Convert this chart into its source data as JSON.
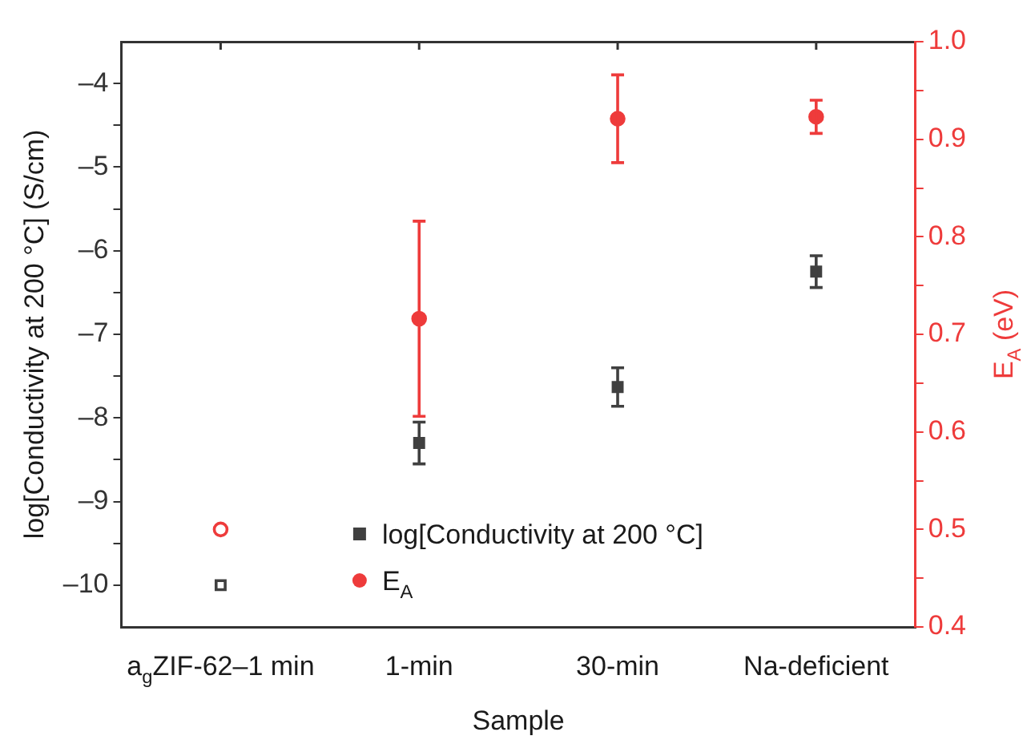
{
  "chart_data": {
    "type": "scatter",
    "xlabel": "Sample",
    "ylabel": "log[Conductivity at 200 °C] (S/cm)",
    "y2label": "E$_{A}$ (eV)",
    "categories": [
      "a$_{g}$ZIF-62–1 min",
      "1-min",
      "30-min",
      "Na-deficient"
    ],
    "series": [
      {
        "name": "log[Conductivity at 200 °C]",
        "color": "#404040",
        "marker": "square",
        "values": [
          -10.0,
          -8.3,
          -7.63,
          -6.25
        ],
        "errors": [
          null,
          0.25,
          0.23,
          0.19
        ]
      },
      {
        "name": "E$_{A}$",
        "color": "#ee3b3b",
        "marker": "circle",
        "axis": "y2",
        "values": [
          0.5,
          0.716,
          0.921,
          0.923
        ],
        "errors": [
          null,
          0.1,
          0.045,
          0.017
        ]
      }
    ],
    "ylim": [
      -10.5,
      -3.5
    ],
    "yticks": [
      {
        "value": -10,
        "label": "–10"
      },
      {
        "value": -9.5,
        "label": null
      },
      {
        "value": -9,
        "label": "–9"
      },
      {
        "value": -8.5,
        "label": null
      },
      {
        "value": -8,
        "label": "–8"
      },
      {
        "value": -7.5,
        "label": null
      },
      {
        "value": -7,
        "label": "–7"
      },
      {
        "value": -6.5,
        "label": null
      },
      {
        "value": -6,
        "label": "–6"
      },
      {
        "value": -5.5,
        "label": null
      },
      {
        "value": -5,
        "label": "–5"
      },
      {
        "value": -4.5,
        "label": null
      },
      {
        "value": -4,
        "label": "–4"
      }
    ],
    "y2lim": [
      0.4,
      1.0
    ],
    "y2ticks": [
      {
        "value": 0.4,
        "label": "0.4"
      },
      {
        "value": 0.45,
        "label": null
      },
      {
        "value": 0.5,
        "label": "0.5"
      },
      {
        "value": 0.55,
        "label": null
      },
      {
        "value": 0.6,
        "label": "0.6"
      },
      {
        "value": 0.65,
        "label": null
      },
      {
        "value": 0.7,
        "label": "0.7"
      },
      {
        "value": 0.75,
        "label": null
      },
      {
        "value": 0.8,
        "label": "0.8"
      },
      {
        "value": 0.85,
        "label": null
      },
      {
        "value": 0.9,
        "label": "0.9"
      },
      {
        "value": 0.95,
        "label": null
      },
      {
        "value": 1.0,
        "label": "1.0"
      }
    ],
    "grid": false,
    "legend": "bottom"
  }
}
